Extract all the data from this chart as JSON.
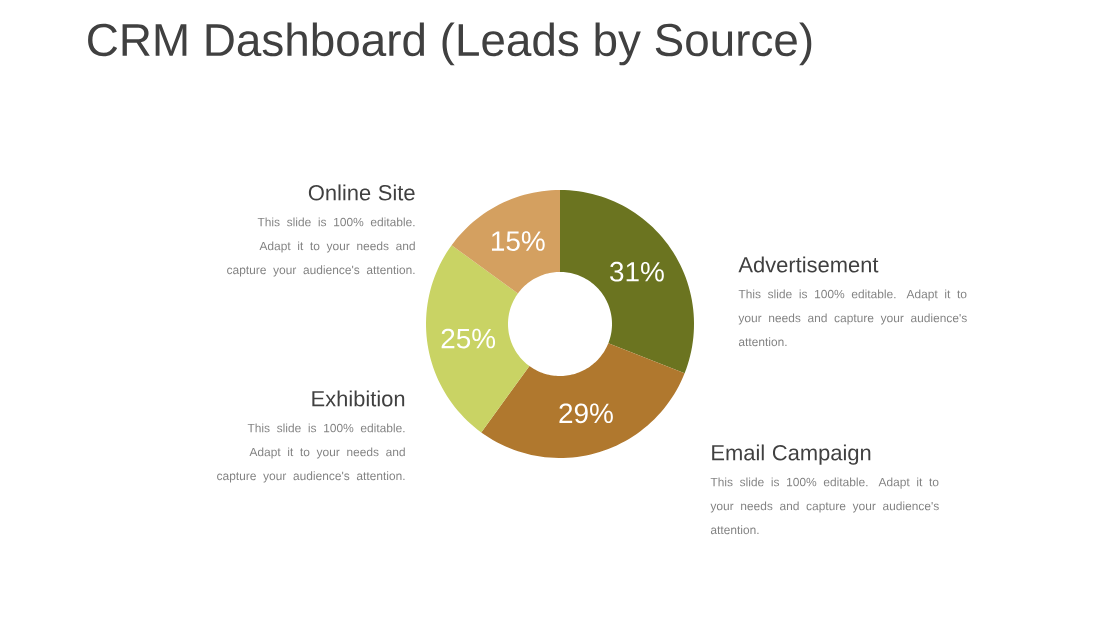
{
  "chart_data": {
    "type": "donut",
    "title": "CRM Dashboard (Leads by Source)",
    "categories": [
      "Advertisement",
      "Email Campaign",
      "Exhibition",
      "Online Site"
    ],
    "values": [
      31,
      29,
      25,
      15
    ],
    "value_labels": [
      "31%",
      "29%",
      "25%",
      "15%"
    ],
    "colors": [
      "#6b7420",
      "#b0782e",
      "#c9d364",
      "#d4a060"
    ],
    "annotations": [
      "This slide is 100% editable. Adapt it to your needs and capture your audience's attention.",
      "This slide is 100% editable. Adapt it to your needs and capture your audience's attention.",
      "This slide is 100% editable. Adapt it to your needs and capture your audience's attention.",
      "This slide is 100% editable. Adapt it to your needs and capture your audience's attention."
    ]
  }
}
